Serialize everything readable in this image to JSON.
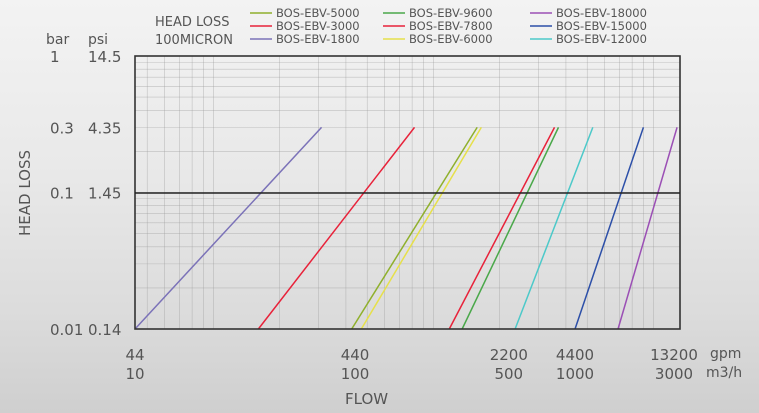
{
  "chart_data": {
    "type": "line",
    "title": "HEAD LOSS",
    "subtitle": "100MICRON",
    "xlabel": "FLOW",
    "ylabel": "HEAD LOSS",
    "x_units": {
      "primary": "gpm",
      "secondary": "m3/h"
    },
    "y_units": {
      "primary": "bar",
      "secondary": "psi"
    },
    "x_scale": "log",
    "y_scale": "log",
    "xlim": [
      44,
      13200
    ],
    "ylim": [
      0.01,
      1
    ],
    "x_ticks": [
      {
        "gpm": "44",
        "m3h": "10",
        "value": 44
      },
      {
        "gpm": "440",
        "m3h": "100",
        "value": 440
      },
      {
        "gpm": "2200",
        "m3h": "500",
        "value": 2200
      },
      {
        "gpm": "4400",
        "m3h": "1000",
        "value": 4400
      },
      {
        "gpm": "13200",
        "m3h": "3000",
        "value": 13200
      }
    ],
    "y_ticks": [
      {
        "bar": "1",
        "psi": "14.5",
        "value": 1
      },
      {
        "bar": "0.3",
        "psi": "4.35",
        "value": 0.3
      },
      {
        "bar": "0.1",
        "psi": "1.45",
        "value": 0.1
      },
      {
        "bar": "0.01",
        "psi": "0.14",
        "value": 0.01
      }
    ],
    "grid": true,
    "legend_position": "top",
    "series": [
      {
        "name": "BOS-EBV-1800",
        "color": "#7b72b8",
        "x": [
          44,
          310
        ],
        "y": [
          0.01,
          0.3
        ]
      },
      {
        "name": "BOS-EBV-3000",
        "color": "#e8223a",
        "x": [
          160,
          820
        ],
        "y": [
          0.01,
          0.3
        ]
      },
      {
        "name": "BOS-EBV-5000",
        "color": "#8fb02c",
        "x": [
          425,
          1580
        ],
        "y": [
          0.01,
          0.3
        ]
      },
      {
        "name": "BOS-EBV-6000",
        "color": "#e6e04a",
        "x": [
          470,
          1650
        ],
        "y": [
          0.01,
          0.3
        ]
      },
      {
        "name": "BOS-EBV-7800",
        "color": "#e8223a",
        "x": [
          1180,
          3550
        ],
        "y": [
          0.01,
          0.3
        ]
      },
      {
        "name": "BOS-EBV-9600",
        "color": "#4aa84a",
        "x": [
          1350,
          3700
        ],
        "y": [
          0.01,
          0.3
        ]
      },
      {
        "name": "BOS-EBV-12000",
        "color": "#4cc9c9",
        "x": [
          2350,
          5300
        ],
        "y": [
          0.01,
          0.3
        ]
      },
      {
        "name": "BOS-EBV-15000",
        "color": "#2c4fa8",
        "x": [
          4400,
          9000
        ],
        "y": [
          0.01,
          0.3
        ]
      },
      {
        "name": "BOS-EBV-18000",
        "color": "#9b4fb5",
        "x": [
          6900,
          12800
        ],
        "y": [
          0.01,
          0.3
        ]
      }
    ]
  },
  "legend": {
    "columns": [
      [
        "BOS-EBV-5000",
        "BOS-EBV-3000",
        "BOS-EBV-1800"
      ],
      [
        "BOS-EBV-9600",
        "BOS-EBV-7800",
        "BOS-EBV-6000"
      ],
      [
        "BOS-EBV-18000",
        "BOS-EBV-15000",
        "BOS-EBV-12000"
      ]
    ]
  }
}
